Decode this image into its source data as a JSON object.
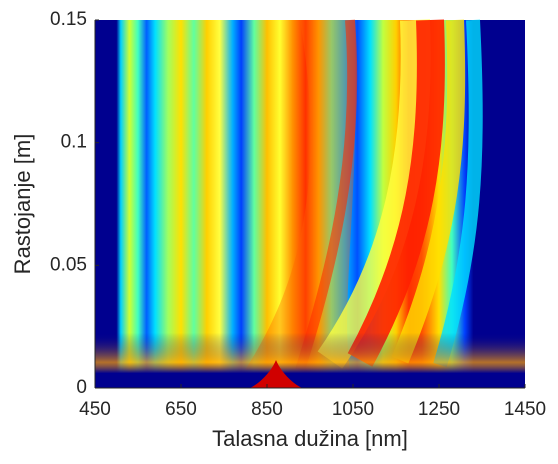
{
  "chart_data": {
    "type": "heatmap",
    "xlabel": "Talasna dužina [nm]",
    "ylabel": "Rastojanje [m]",
    "xlim": [
      450,
      1450
    ],
    "xticks": [
      450,
      650,
      850,
      1050,
      1250,
      1450
    ],
    "ylim": [
      0,
      0.15
    ],
    "yticks": [
      0,
      0.05,
      0.1,
      0.15
    ],
    "colormap": "jet"
  }
}
